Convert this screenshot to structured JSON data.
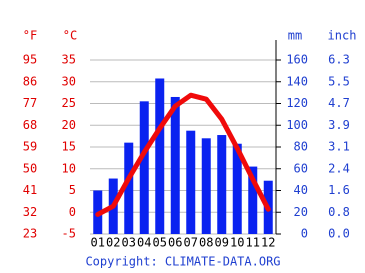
{
  "chart_data": {
    "type": "climate",
    "categories": [
      "01",
      "02",
      "03",
      "04",
      "05",
      "06",
      "07",
      "08",
      "09",
      "10",
      "11",
      "12"
    ],
    "series": [
      {
        "type": "bar",
        "color": "#0a22f0",
        "axis": "y2",
        "values": [
          40,
          51,
          84,
          122,
          143,
          126,
          95,
          88,
          91,
          83,
          62,
          49
        ]
      },
      {
        "type": "line",
        "color": "#f00a0a",
        "values": [
          -0.5,
          1.4,
          7.8,
          13.8,
          19.3,
          24.4,
          26.9,
          26,
          21.4,
          14.7,
          7.6,
          0.7
        ]
      }
    ],
    "ylabel": "°C",
    "ylabel_f": "°F",
    "ylim": [
      -5,
      35
    ],
    "yticks": [
      -5,
      0,
      5,
      10,
      15,
      20,
      25,
      30,
      35
    ],
    "yticks_f": [
      {
        "value": -5,
        "label": "23"
      },
      {
        "value": 0,
        "label": "32"
      },
      {
        "value": 5,
        "label": "41"
      },
      {
        "value": 10,
        "label": "50"
      },
      {
        "value": 15,
        "label": "59"
      },
      {
        "value": 20,
        "label": "68"
      },
      {
        "value": 25,
        "label": "77"
      },
      {
        "value": 30,
        "label": "86"
      },
      {
        "value": 35,
        "label": "95"
      }
    ],
    "y2label": "mm",
    "y2label_inch": "inch",
    "y2lim": [
      0,
      160
    ],
    "y2ticks": [
      0,
      20,
      40,
      60,
      80,
      100,
      120,
      140,
      160
    ],
    "y2ticks_inch": [
      {
        "value": 0,
        "label": "0.0"
      },
      {
        "value": 20,
        "label": "0.8"
      },
      {
        "value": 40,
        "label": "1.6"
      },
      {
        "value": 60,
        "label": "2.4"
      },
      {
        "value": 80,
        "label": "3.1"
      },
      {
        "value": 100,
        "label": "3.9"
      },
      {
        "value": 120,
        "label": "4.7"
      },
      {
        "value": 140,
        "label": "5.5"
      },
      {
        "value": 160,
        "label": "6.3"
      }
    ],
    "grid": true,
    "left_color": "#e00000",
    "right_color": "#1f3fd0",
    "credit": "Copyright: CLIMATE-DATA.ORG"
  }
}
